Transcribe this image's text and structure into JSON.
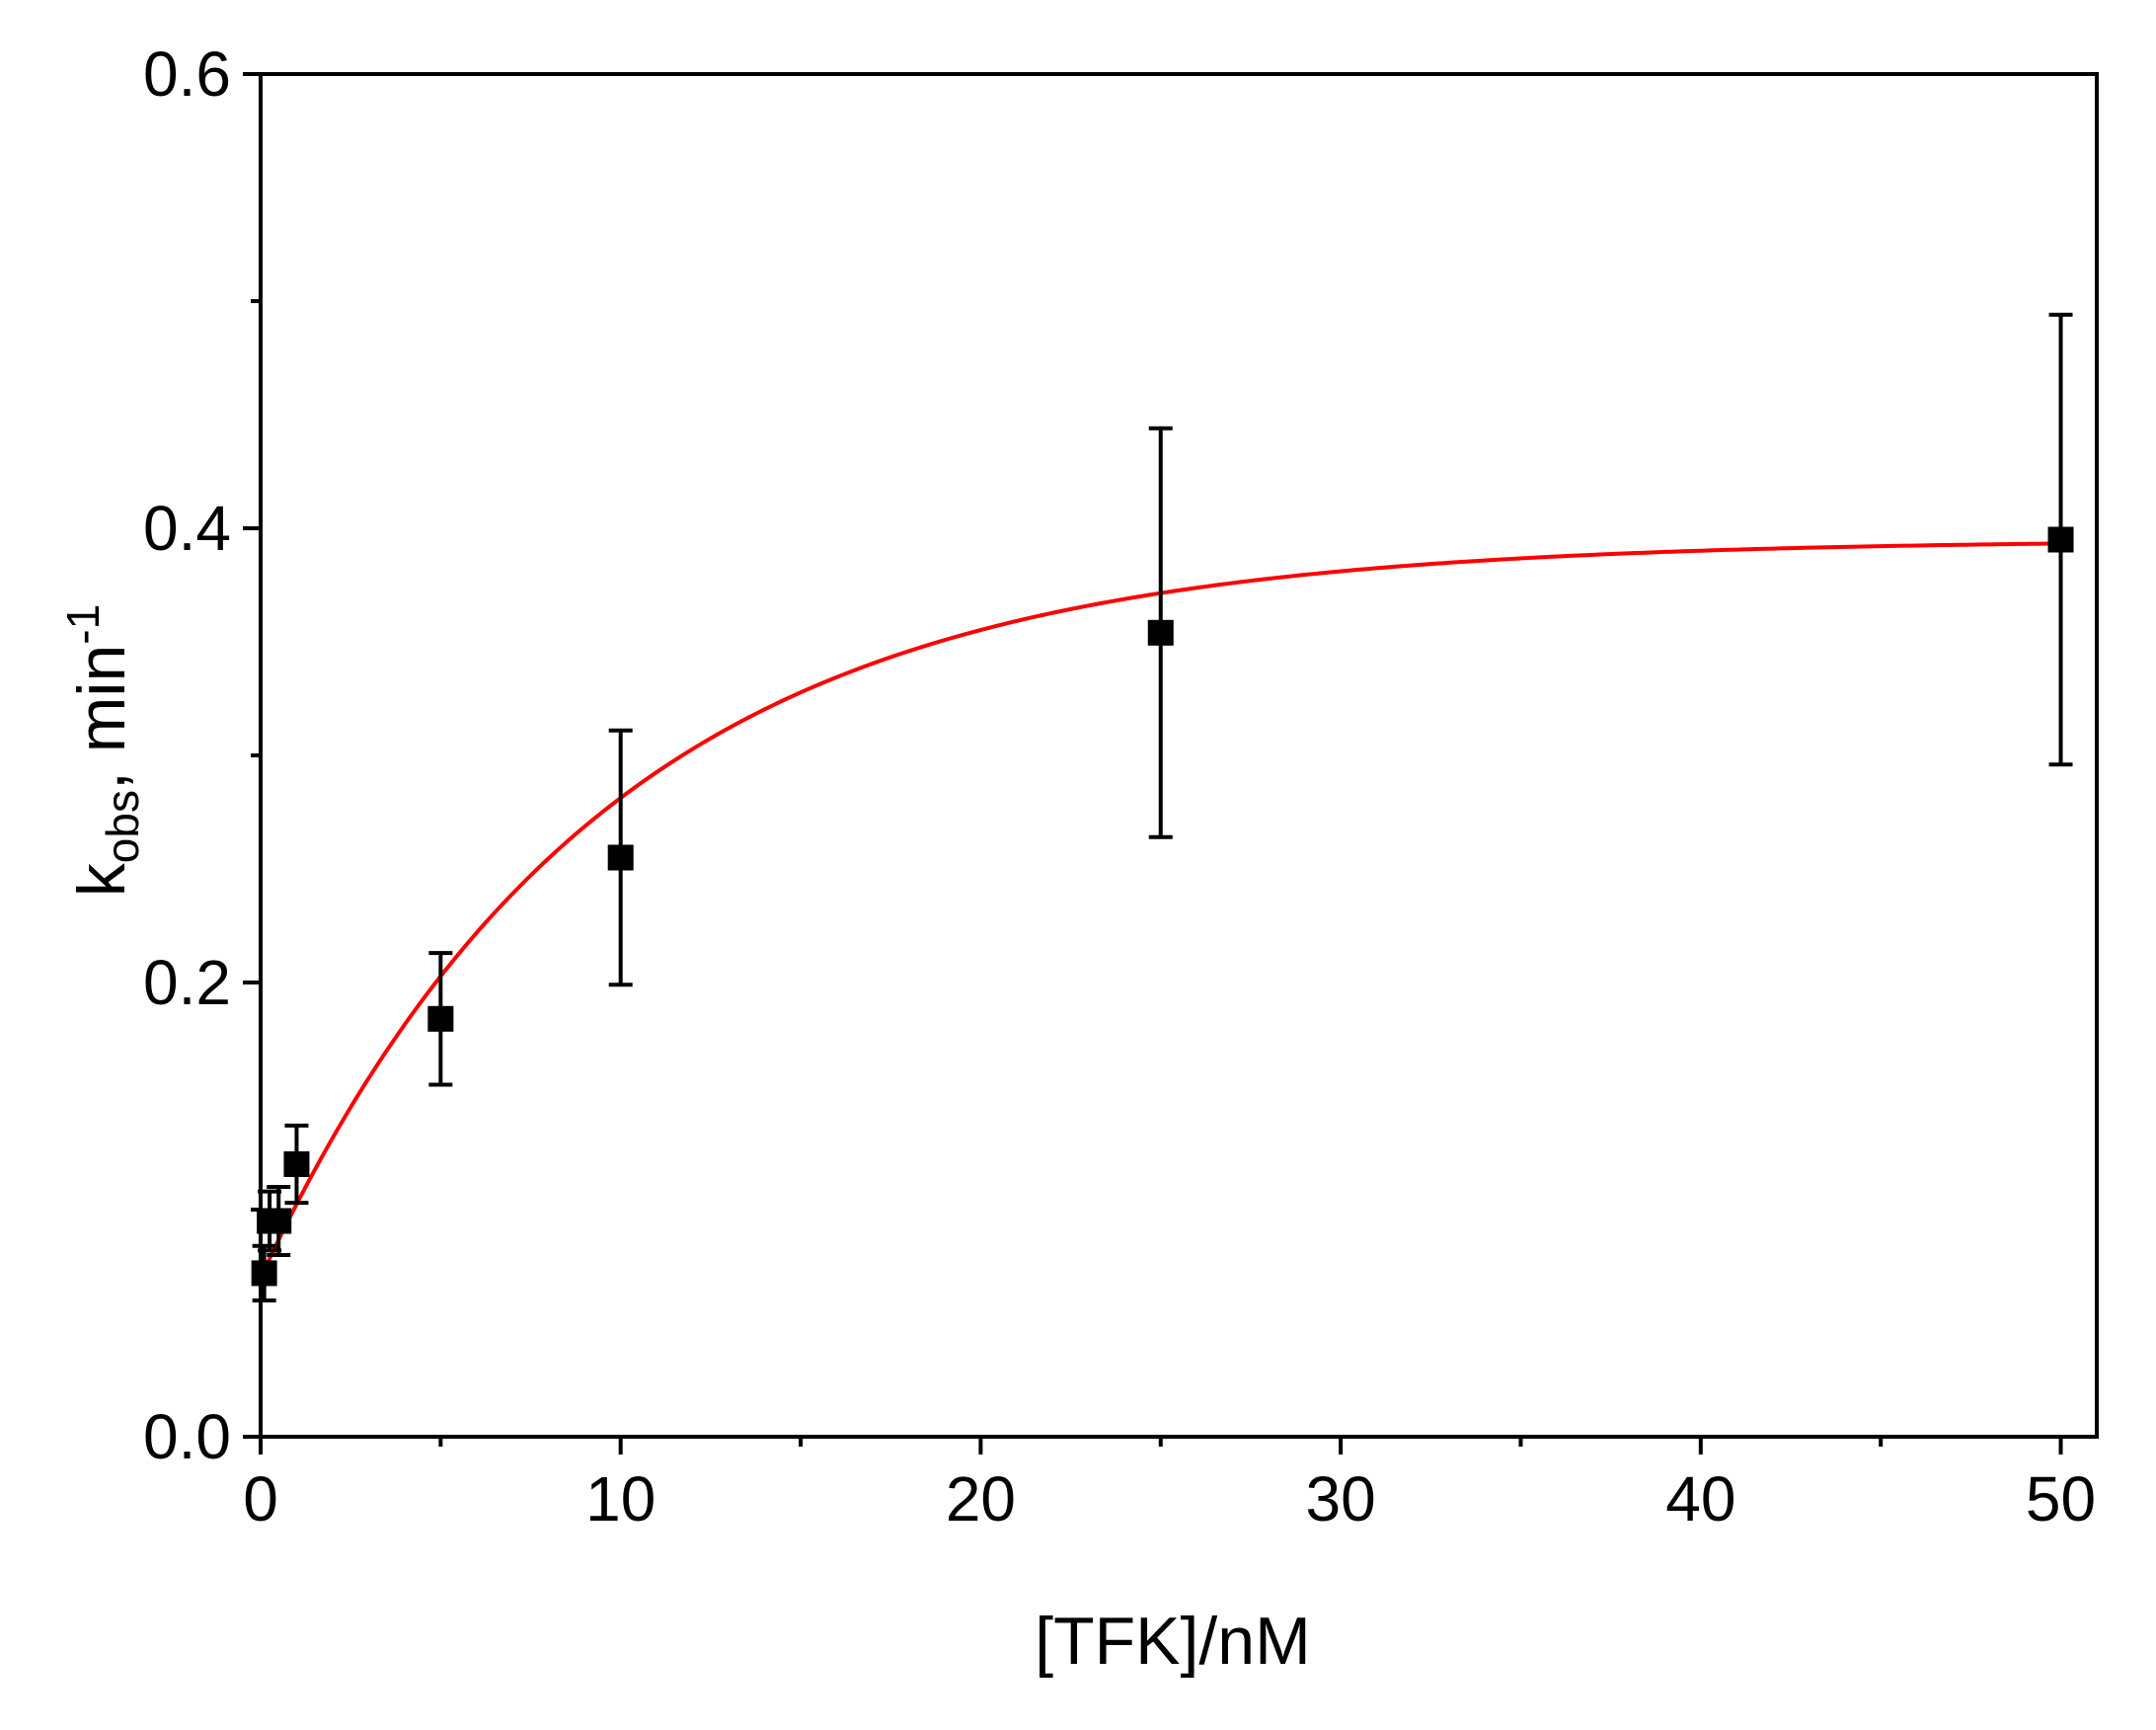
{
  "chart_data": {
    "type": "scatter",
    "title": "",
    "xlabel": "[TFK]/nM",
    "ylabel": {
      "main": "k",
      "subscript": "obs",
      "suffix": ", min",
      "superscript": "-1"
    },
    "xlim": [
      0,
      51
    ],
    "ylim": [
      0,
      0.6
    ],
    "x_ticks": [
      0,
      10,
      20,
      30,
      40,
      50
    ],
    "x_tick_labels": [
      "0",
      "10",
      "20",
      "30",
      "40",
      "50"
    ],
    "x_minor_ticks": [
      5,
      15,
      25,
      35,
      45
    ],
    "y_ticks": [
      0,
      0.2,
      0.4,
      0.6
    ],
    "y_tick_labels": [
      "0.0",
      "0.2",
      "0.4",
      "0.6"
    ],
    "y_minor_ticks": [
      0.1,
      0.3,
      0.5
    ],
    "grid": false,
    "series": [
      {
        "type": "scatter",
        "marker": "square",
        "color": "#000000",
        "points": [
          {
            "x": 0.1,
            "y": 0.072,
            "err": 0.012
          },
          {
            "x": 0.25,
            "y": 0.095,
            "err": 0.013
          },
          {
            "x": 0.5,
            "y": 0.095,
            "err": 0.015
          },
          {
            "x": 1,
            "y": 0.12,
            "err": 0.017
          },
          {
            "x": 5,
            "y": 0.184,
            "err": 0.029
          },
          {
            "x": 10,
            "y": 0.255,
            "err": 0.056
          },
          {
            "x": 25,
            "y": 0.354,
            "err": 0.09
          },
          {
            "x": 50,
            "y": 0.395,
            "err": 0.099
          }
        ]
      },
      {
        "type": "line",
        "color": "#ff0000",
        "fit": {
          "model": "single-exponential rise",
          "y0": 0.07,
          "ymax": 0.395,
          "rate": 0.105
        },
        "x_range": [
          0.1,
          50
        ]
      }
    ]
  }
}
